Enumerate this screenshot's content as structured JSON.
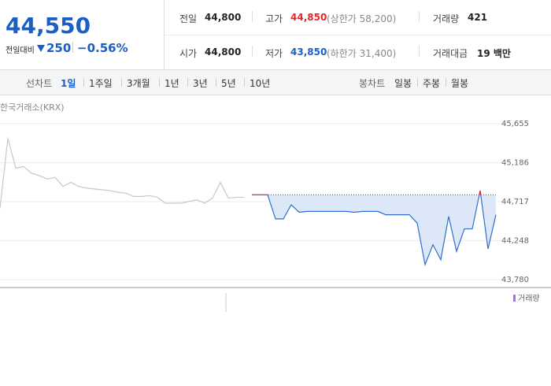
{
  "quote": {
    "price": "44,550",
    "change_label": "전일대비",
    "change": "250",
    "change_pct": "−0.56%"
  },
  "stats": [
    {
      "label": "전일",
      "value": "44,800"
    },
    {
      "label": "고가",
      "value": "44,850",
      "note": "(상한가 58,200)",
      "color": "#e0262d"
    },
    {
      "label": "거래량",
      "value": "421"
    },
    {
      "label": "시가",
      "value": "44,800"
    },
    {
      "label": "저가",
      "value": "43,850",
      "note": "(하한가 31,400)",
      "color": "#1a5fc8"
    },
    {
      "label": "거래대금",
      "value": "19 백만"
    }
  ],
  "tabs": {
    "line_label": "선차트",
    "periods": [
      "1일",
      "1주일",
      "3개월",
      "1년",
      "3년",
      "5년",
      "10년"
    ],
    "candle_label": "봉차트",
    "candles": [
      "일봉",
      "주봉",
      "월봉"
    ]
  },
  "chart_data": {
    "type": "line",
    "source": "한국거래소(KRX)",
    "categories": [
      null,
      null,
      null,
      null,
      null,
      null,
      null,
      null,
      null,
      null,
      null,
      null,
      null,
      null,
      null,
      null,
      null,
      null,
      null,
      null,
      null,
      null,
      null,
      null,
      null,
      null,
      null,
      null,
      null,
      null,
      null,
      null,
      null,
      null,
      null,
      null,
      null,
      null,
      null,
      null,
      null,
      null,
      null,
      null,
      null,
      null,
      null,
      null,
      null,
      null,
      null,
      null,
      null,
      null,
      null,
      null,
      null,
      null,
      null,
      null,
      null,
      null,
      null,
      null
    ],
    "series": [
      {
        "color": "#c8c8c8",
        "values": [
          44640,
          45480,
          45120,
          45140,
          45060,
          45030,
          44990,
          45010,
          44900,
          44950,
          44900,
          44880,
          44870,
          44860,
          44850,
          44830,
          44820,
          44780,
          44780,
          44790,
          44770,
          44700,
          44700,
          44700,
          44720,
          44740,
          44700,
          44760,
          44950,
          44760,
          44770,
          44770,
          null,
          null,
          null,
          null,
          null,
          null,
          null,
          null,
          null,
          null,
          null,
          null,
          null,
          null,
          null,
          null,
          null,
          null,
          null,
          null,
          null,
          null,
          null,
          null,
          null,
          null,
          null,
          null,
          null,
          null,
          null,
          null
        ]
      },
      {
        "color": "#2f6fcf",
        "values": [
          null,
          null,
          null,
          null,
          null,
          null,
          null,
          null,
          null,
          null,
          null,
          null,
          null,
          null,
          null,
          null,
          null,
          null,
          null,
          null,
          null,
          null,
          null,
          null,
          null,
          null,
          null,
          null,
          null,
          null,
          null,
          null,
          44800,
          44800,
          44800,
          44510,
          44510,
          44680,
          44590,
          44600,
          44600,
          44600,
          44600,
          44600,
          44600,
          44590,
          44600,
          44600,
          44600,
          44560,
          44560,
          44560,
          44560,
          44460,
          43960,
          44200,
          44020,
          44540,
          44120,
          44390,
          44390,
          44850,
          44150,
          44560
        ]
      }
    ],
    "reference": 44800,
    "up_color": "#e0262d",
    "fill_color": "#dce8f8",
    "ylim": [
      43780,
      45655
    ],
    "yticks": [
      {
        "value": 43780,
        "label": "43,780"
      },
      {
        "value": 44248,
        "label": "44,248"
      },
      {
        "value": 44717,
        "label": "44,717"
      },
      {
        "value": 45186,
        "label": "45,186"
      },
      {
        "value": 45655,
        "label": "45,655"
      }
    ],
    "grid": true,
    "volume_legend": "거래량",
    "volume_color": "#9b7fc4"
  }
}
